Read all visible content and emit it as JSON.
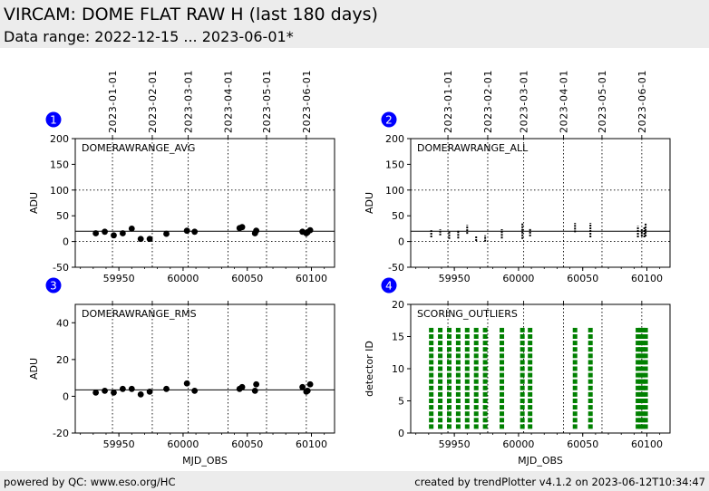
{
  "header": {
    "title": "VIRCAM: DOME FLAT RAW H (last 180 days)",
    "subtitle": "Data range: 2022-12-15 ... 2023-06-01*"
  },
  "footer": {
    "left": "powered by QC: www.eso.org/HC",
    "right": "created by trendPlotter v4.1.2 on 2023-06-12T10:34:47"
  },
  "chart_data": [
    {
      "index": "1",
      "type": "scatter",
      "title": "DOMERAWRANGE_AVG",
      "xlabel": "",
      "ylabel": "ADU",
      "xlim": [
        59916,
        60118
      ],
      "ylim": [
        -50,
        200
      ],
      "yticks": [
        -50,
        0,
        50,
        100,
        150,
        200
      ],
      "xticks": [
        59950,
        60000,
        60050,
        60100
      ],
      "reference_line": 20,
      "dotted_hlines": [
        0,
        100
      ],
      "date_ticks": [
        {
          "label": "2023-01-01",
          "mjd": 59945
        },
        {
          "label": "2023-02-01",
          "mjd": 59976
        },
        {
          "label": "2023-03-01",
          "mjd": 60004
        },
        {
          "label": "2023-04-01",
          "mjd": 60035
        },
        {
          "label": "2023-05-01",
          "mjd": 60065
        },
        {
          "label": "2023-06-01",
          "mjd": 60096
        }
      ],
      "x": [
        59932,
        59939,
        59946,
        59953,
        59960,
        59967,
        59974,
        59987,
        60003,
        60009,
        60044,
        60046,
        60056,
        60057,
        60093,
        60096,
        60097,
        60099
      ],
      "y": [
        16,
        19,
        12,
        16,
        25,
        5,
        5,
        15,
        21,
        19,
        26,
        28,
        16,
        21,
        19,
        16,
        18,
        22
      ]
    },
    {
      "index": "2",
      "type": "scatter",
      "title": "DOMERAWRANGE_ALL",
      "xlabel": "",
      "ylabel": "ADU",
      "xlim": [
        59916,
        60118
      ],
      "ylim": [
        -50,
        200
      ],
      "yticks": [
        -50,
        0,
        50,
        100,
        150,
        200
      ],
      "xticks": [
        59950,
        60000,
        60050,
        60100
      ],
      "reference_line": 20,
      "dotted_hlines": [
        0,
        100
      ],
      "date_ticks": [
        {
          "label": "2023-01-01",
          "mjd": 59945
        },
        {
          "label": "2023-02-01",
          "mjd": 59976
        },
        {
          "label": "2023-03-01",
          "mjd": 60004
        },
        {
          "label": "2023-04-01",
          "mjd": 60035
        },
        {
          "label": "2023-05-01",
          "mjd": 60065
        },
        {
          "label": "2023-06-01",
          "mjd": 60096
        }
      ],
      "ranges": [
        {
          "x": 59932,
          "ymin": 8,
          "ymax": 22
        },
        {
          "x": 59939,
          "ymin": 12,
          "ymax": 24
        },
        {
          "x": 59946,
          "ymin": 5,
          "ymax": 20
        },
        {
          "x": 59953,
          "ymin": 6,
          "ymax": 22
        },
        {
          "x": 59960,
          "ymin": 15,
          "ymax": 32
        },
        {
          "x": 59967,
          "ymin": 1,
          "ymax": 10
        },
        {
          "x": 59974,
          "ymin": 0,
          "ymax": 12
        },
        {
          "x": 59987,
          "ymin": 6,
          "ymax": 24
        },
        {
          "x": 60003,
          "ymin": 5,
          "ymax": 36
        },
        {
          "x": 60009,
          "ymin": 10,
          "ymax": 26
        },
        {
          "x": 60044,
          "ymin": 18,
          "ymax": 36
        },
        {
          "x": 60056,
          "ymin": 8,
          "ymax": 36
        },
        {
          "x": 60093,
          "ymin": 8,
          "ymax": 30
        },
        {
          "x": 60096,
          "ymin": 10,
          "ymax": 24
        },
        {
          "x": 60098,
          "ymin": 8,
          "ymax": 28
        },
        {
          "x": 60099,
          "ymin": 10,
          "ymax": 36
        }
      ]
    },
    {
      "index": "3",
      "type": "scatter",
      "title": "DOMERAWRANGE_RMS",
      "xlabel": "MJD_OBS",
      "ylabel": "ADU",
      "xlim": [
        59916,
        60118
      ],
      "ylim": [
        -20,
        50
      ],
      "yticks": [
        -20,
        0,
        20,
        40
      ],
      "xticks": [
        59950,
        60000,
        60050,
        60100
      ],
      "reference_line": 3.5,
      "dotted_hlines": [],
      "date_ticks": [
        {
          "label": "2023-01-01",
          "mjd": 59945
        },
        {
          "label": "2023-02-01",
          "mjd": 59976
        },
        {
          "label": "2023-03-01",
          "mjd": 60004
        },
        {
          "label": "2023-04-01",
          "mjd": 60035
        },
        {
          "label": "2023-05-01",
          "mjd": 60065
        },
        {
          "label": "2023-06-01",
          "mjd": 60096
        }
      ],
      "x": [
        59932,
        59939,
        59946,
        59953,
        59960,
        59967,
        59974,
        59987,
        60003,
        60009,
        60044,
        60046,
        60056,
        60057,
        60093,
        60096,
        60097,
        60099
      ],
      "y": [
        2,
        3,
        2,
        4,
        4,
        1,
        2.5,
        4,
        7,
        3,
        4,
        5,
        3,
        6.5,
        5,
        2.5,
        3,
        6.5
      ]
    },
    {
      "index": "4",
      "type": "scatter",
      "title": "SCORING_OUTLIERS",
      "xlabel": "MJD_OBS",
      "ylabel": "detector ID",
      "xlim": [
        59916,
        60118
      ],
      "ylim": [
        0,
        20
      ],
      "yticks": [
        0,
        5,
        10,
        15,
        20
      ],
      "xticks": [
        59950,
        60000,
        60050,
        60100
      ],
      "reference_line": null,
      "dotted_hlines": [],
      "date_ticks": [
        {
          "label": "2023-01-01",
          "mjd": 59945
        },
        {
          "label": "2023-02-01",
          "mjd": 59976
        },
        {
          "label": "2023-03-01",
          "mjd": 60004
        },
        {
          "label": "2023-04-01",
          "mjd": 60035
        },
        {
          "label": "2023-05-01",
          "mjd": 60065
        },
        {
          "label": "2023-06-01",
          "mjd": 60096
        }
      ],
      "detector_ids": [
        1,
        2,
        3,
        4,
        5,
        6,
        7,
        8,
        9,
        10,
        11,
        12,
        13,
        14,
        15,
        16
      ],
      "outlier_mjds": [
        59932,
        59939,
        59946,
        59953,
        59960,
        59967,
        59974,
        59987,
        60003,
        60009,
        60044,
        60056,
        60093,
        60095,
        60097,
        60099
      ],
      "marker_color": "#008000"
    }
  ]
}
